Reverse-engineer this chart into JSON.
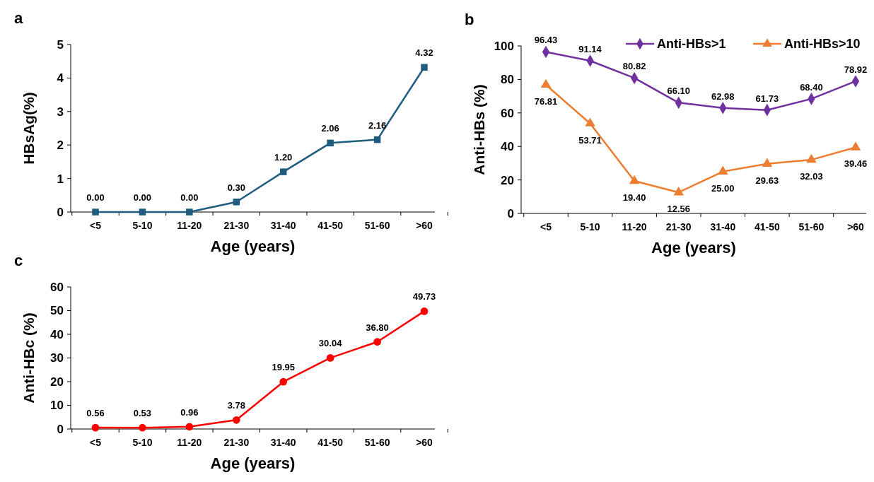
{
  "chart_data": [
    {
      "type": "line",
      "title": "a",
      "xlabel": "Age (years)",
      "ylabel": "HBsAg(%)",
      "categories": [
        "<5",
        "5-10",
        "11-20",
        "21-30",
        "31-40",
        "41-50",
        "51-60",
        ">60"
      ],
      "ylim": [
        0,
        5
      ],
      "yticks": [
        0,
        1,
        2,
        3,
        4,
        5
      ],
      "grid": false,
      "marker": "square",
      "legend": false,
      "series": [
        {
          "color": "#1f5c80",
          "values": [
            0,
            0,
            0,
            0.3,
            1.2,
            2.06,
            2.16,
            4.32
          ],
          "value_labels": [
            "0.00",
            "0.00",
            "0.00",
            "0.30",
            "1.20",
            "2.06",
            "2.16",
            "4.32"
          ]
        }
      ]
    },
    {
      "type": "line",
      "title": "b",
      "xlabel": "Age (years)",
      "ylabel": "Anti-HBs (%)",
      "categories": [
        "<5",
        "5-10",
        "11-20",
        "21-30",
        "31-40",
        "41-50",
        "51-60",
        ">60"
      ],
      "ylim": [
        0,
        100
      ],
      "yticks": [
        0,
        20,
        40,
        60,
        80,
        100
      ],
      "grid": false,
      "legend": "top right",
      "series": [
        {
          "name": "Anti-HBs>1",
          "color": "#7030a0",
          "marker": "diamond",
          "values": [
            96.43,
            91.14,
            80.82,
            66.1,
            62.98,
            61.73,
            68.4,
            78.92
          ],
          "value_labels": [
            "96.43",
            "91.14",
            "80.82",
            "66.10",
            "62.98",
            "61.73",
            "68.40",
            "78.92"
          ]
        },
        {
          "name": "Anti-HBs>10",
          "color": "#ed7d31",
          "marker": "triangle",
          "values": [
            76.81,
            53.71,
            19.4,
            12.56,
            25,
            29.63,
            32.03,
            39.46
          ],
          "value_labels": [
            "76.81",
            "53.71",
            "19.40",
            "12.56",
            "25.00",
            "29.63",
            "32.03",
            "39.46"
          ]
        }
      ]
    },
    {
      "type": "line",
      "title": "c",
      "xlabel": "Age (years)",
      "ylabel": "Anti-HBc (%)",
      "categories": [
        "<5",
        "5-10",
        "11-20",
        "21-30",
        "31-40",
        "41-50",
        "51-60",
        ">60"
      ],
      "ylim": [
        0,
        60
      ],
      "yticks": [
        0,
        10,
        20,
        30,
        40,
        50,
        60
      ],
      "grid": false,
      "marker": "circle",
      "legend": false,
      "series": [
        {
          "color": "#ff0000",
          "values": [
            0.56,
            0.53,
            0.96,
            3.78,
            19.95,
            30.04,
            36.8,
            49.73
          ],
          "value_labels": [
            "0.56",
            "0.53",
            "0.96",
            "3.78",
            "19.95",
            "30.04",
            "36.80",
            "49.73"
          ]
        }
      ]
    }
  ]
}
